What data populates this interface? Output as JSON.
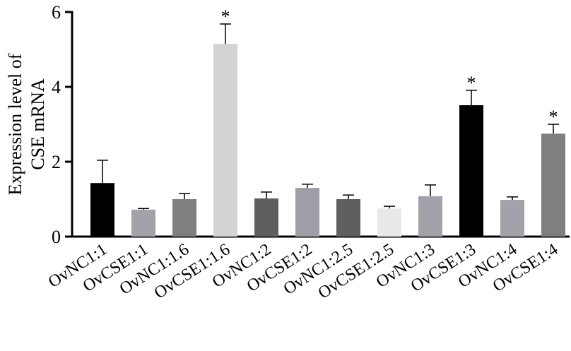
{
  "chart_data": {
    "type": "bar",
    "ylabel": [
      "Expression level of",
      "CSE mRNA"
    ],
    "categories": [
      "OvNC1:1",
      "OvCSE1:1",
      "OvNC1:1.6",
      "OvCSE1:1.6",
      "OvNC1:2",
      "OvCSE1:2",
      "OvNC1:2.5",
      "OvCSE1:2.5",
      "OvNC1:3",
      "OvCSE1:3",
      "OvNC1:4",
      "OvCSE1:4"
    ],
    "values": [
      1.43,
      0.72,
      1.0,
      5.15,
      1.02,
      1.3,
      1.0,
      0.75,
      1.08,
      3.51,
      0.98,
      2.75
    ],
    "errors": [
      0.61,
      0.03,
      0.15,
      0.53,
      0.17,
      0.1,
      0.11,
      0.06,
      0.3,
      0.4,
      0.08,
      0.25
    ],
    "colors": [
      "#000000",
      "#a2a2aa",
      "#7f7f7f",
      "#d3d3d3",
      "#5f5f5f",
      "#9e9ea6",
      "#5f5f5f",
      "#e8e8e8",
      "#a2a2aa",
      "#000000",
      "#a2a2aa",
      "#7f7f7f"
    ],
    "significance": [
      null,
      null,
      null,
      "*",
      null,
      null,
      null,
      null,
      null,
      "*",
      null,
      "*"
    ],
    "ylim": [
      0,
      6
    ],
    "yticks": [
      0,
      2,
      4,
      6
    ]
  }
}
